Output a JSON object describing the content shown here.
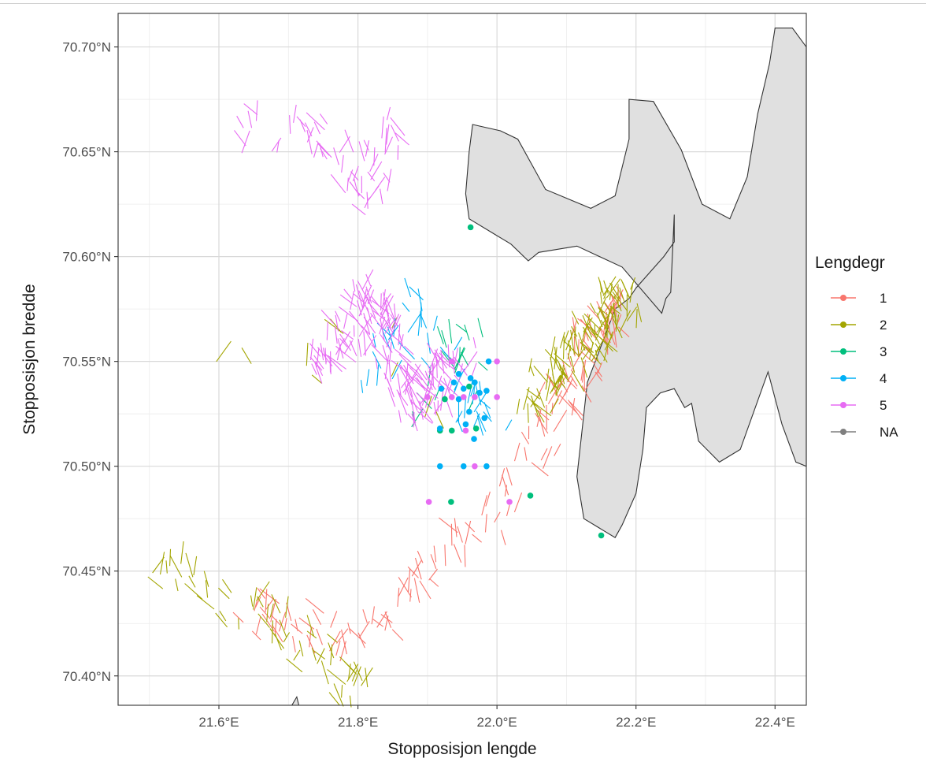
{
  "chart_data": {
    "type": "scatter",
    "xlabel": "Stopposisjon lengde",
    "ylabel": "Stopposisjon bredde",
    "xlim": [
      21.455,
      22.445
    ],
    "ylim": [
      70.386,
      70.716
    ],
    "x_ticks": [
      21.6,
      21.8,
      22.0,
      22.2,
      22.4
    ],
    "x_tick_labels": [
      "21.6°E",
      "21.8°E",
      "22.0°E",
      "22.2°E",
      "22.4°E"
    ],
    "y_ticks": [
      70.4,
      70.45,
      70.5,
      70.55,
      70.6,
      70.65,
      70.7
    ],
    "y_tick_labels": [
      "70.40°N",
      "70.45°N",
      "70.50°N",
      "70.55°N",
      "70.60°N",
      "70.65°N",
      "70.70°N"
    ],
    "grid": true,
    "legend": {
      "title": "Lengdegr",
      "placement": "right",
      "entries": [
        {
          "label": "1",
          "color": "#F8766D"
        },
        {
          "label": "2",
          "color": "#A3A500"
        },
        {
          "label": "3",
          "color": "#00BF7D"
        },
        {
          "label": "4",
          "color": "#00B0F6"
        },
        {
          "label": "5",
          "color": "#E76BF3"
        },
        {
          "label": "NA",
          "color": "#7F7F7F"
        }
      ]
    },
    "land_color": "#e0e0e0",
    "land": [
      [
        [
          21.965,
          70.663
        ],
        [
          22.005,
          70.66
        ],
        [
          22.03,
          70.656
        ],
        [
          22.07,
          70.632
        ],
        [
          22.135,
          70.623
        ],
        [
          22.17,
          70.629
        ],
        [
          22.19,
          70.656
        ],
        [
          22.19,
          70.675
        ],
        [
          22.225,
          70.674
        ],
        [
          22.265,
          70.651
        ],
        [
          22.295,
          70.625
        ],
        [
          22.335,
          70.618
        ],
        [
          22.36,
          70.638
        ],
        [
          22.375,
          70.668
        ],
        [
          22.392,
          70.692
        ],
        [
          22.4,
          70.709
        ],
        [
          22.425,
          70.709
        ],
        [
          22.445,
          70.7
        ],
        [
          22.445,
          70.5
        ],
        [
          22.43,
          70.502
        ],
        [
          22.41,
          70.52
        ],
        [
          22.39,
          70.545
        ],
        [
          22.35,
          70.508
        ],
        [
          22.32,
          70.502
        ],
        [
          22.29,
          70.512
        ],
        [
          22.28,
          70.53
        ],
        [
          22.27,
          70.528
        ],
        [
          22.255,
          70.537
        ],
        [
          22.235,
          70.535
        ],
        [
          22.215,
          70.528
        ],
        [
          22.21,
          70.508
        ],
        [
          22.2,
          70.487
        ],
        [
          22.18,
          70.472
        ],
        [
          22.17,
          70.466
        ],
        [
          22.125,
          70.475
        ],
        [
          22.115,
          70.495
        ],
        [
          22.13,
          70.54
        ],
        [
          22.17,
          70.575
        ],
        [
          22.19,
          70.58
        ],
        [
          22.2,
          70.585
        ],
        [
          22.24,
          70.6
        ],
        [
          22.255,
          70.607
        ],
        [
          22.255,
          70.62
        ],
        [
          22.25,
          70.583
        ],
        [
          22.243,
          70.58
        ],
        [
          22.237,
          70.573
        ],
        [
          22.18,
          70.595
        ],
        [
          22.115,
          70.605
        ],
        [
          22.06,
          70.602
        ],
        [
          22.045,
          70.598
        ],
        [
          22.02,
          70.606
        ],
        [
          21.995,
          70.611
        ],
        [
          21.96,
          70.618
        ],
        [
          21.955,
          70.63
        ],
        [
          21.96,
          70.65
        ],
        [
          21.965,
          70.663
        ]
      ],
      [
        [
          21.705,
          70.386
        ],
        [
          21.715,
          70.386
        ],
        [
          21.712,
          70.39
        ],
        [
          21.705,
          70.386
        ]
      ]
    ],
    "segment_series": [
      {
        "name": "1",
        "groups": [
          {
            "x": [
              21.65,
              21.8,
              22.0,
              22.12,
              22.17
            ],
            "y": [
              70.43,
              70.42,
              70.48,
              70.55,
              70.58
            ],
            "count": 160
          }
        ]
      },
      {
        "name": "2",
        "groups": [
          {
            "x": [
              21.52,
              21.6,
              21.66,
              21.75,
              21.8
            ],
            "y": [
              70.455,
              70.44,
              70.43,
              70.41,
              70.39
            ],
            "count": 60
          },
          {
            "x": [
              22.05,
              22.1,
              22.15,
              22.18
            ],
            "y": [
              70.53,
              70.55,
              70.57,
              70.58
            ],
            "count": 120
          },
          {
            "x": [
              21.56,
              21.68,
              21.79,
              21.99
            ],
            "y": [
              70.58,
              70.51,
              70.58,
              70.49
            ],
            "count": 10
          }
        ]
      },
      {
        "name": "3",
        "groups": [
          {
            "x": [
              21.88,
              21.95,
              21.98
            ],
            "y": [
              70.52,
              70.56,
              70.53
            ],
            "count": 20
          }
        ]
      },
      {
        "name": "4",
        "groups": [
          {
            "x": [
              21.82,
              21.88,
              21.96,
              22.0
            ],
            "y": [
              70.54,
              70.58,
              70.53,
              70.53
            ],
            "count": 45
          }
        ]
      },
      {
        "name": "5",
        "groups": [
          {
            "x": [
              21.62,
              21.75,
              21.8,
              21.85
            ],
            "y": [
              70.66,
              70.66,
              70.63,
              70.66
            ],
            "count": 60
          },
          {
            "x": [
              21.75,
              21.82,
              21.88,
              21.95
            ],
            "y": [
              70.55,
              70.58,
              70.53,
              70.55
            ],
            "count": 180
          }
        ]
      }
    ],
    "points": [
      {
        "series": "3",
        "x": 21.962,
        "y": 70.614
      },
      {
        "series": "3",
        "x": 22.15,
        "y": 70.467
      },
      {
        "series": "3",
        "x": 22.048,
        "y": 70.486
      },
      {
        "series": "3",
        "x": 21.934,
        "y": 70.483
      },
      {
        "series": "3",
        "x": 21.918,
        "y": 70.517
      },
      {
        "series": "3",
        "x": 21.935,
        "y": 70.517
      },
      {
        "series": "3",
        "x": 21.97,
        "y": 70.518
      },
      {
        "series": "3",
        "x": 21.96,
        "y": 70.538
      },
      {
        "series": "3",
        "x": 21.925,
        "y": 70.532
      },
      {
        "series": "4",
        "x": 21.945,
        "y": 70.544
      },
      {
        "series": "4",
        "x": 21.938,
        "y": 70.54
      },
      {
        "series": "4",
        "x": 21.952,
        "y": 70.537
      },
      {
        "series": "4",
        "x": 21.962,
        "y": 70.542
      },
      {
        "series": "4",
        "x": 21.968,
        "y": 70.54
      },
      {
        "series": "4",
        "x": 21.975,
        "y": 70.535
      },
      {
        "series": "4",
        "x": 21.985,
        "y": 70.536
      },
      {
        "series": "4",
        "x": 21.96,
        "y": 70.526
      },
      {
        "series": "4",
        "x": 21.955,
        "y": 70.52
      },
      {
        "series": "4",
        "x": 21.967,
        "y": 70.513
      },
      {
        "series": "4",
        "x": 21.982,
        "y": 70.523
      },
      {
        "series": "4",
        "x": 21.988,
        "y": 70.55
      },
      {
        "series": "4",
        "x": 21.92,
        "y": 70.537
      },
      {
        "series": "4",
        "x": 21.945,
        "y": 70.532
      },
      {
        "series": "4",
        "x": 21.918,
        "y": 70.5
      },
      {
        "series": "4",
        "x": 21.952,
        "y": 70.5
      },
      {
        "series": "4",
        "x": 21.985,
        "y": 70.5
      },
      {
        "series": "4",
        "x": 21.918,
        "y": 70.518
      },
      {
        "series": "5",
        "x": 21.902,
        "y": 70.483
      },
      {
        "series": "5",
        "x": 22.018,
        "y": 70.483
      },
      {
        "series": "5",
        "x": 21.968,
        "y": 70.5
      },
      {
        "series": "5",
        "x": 21.955,
        "y": 70.517
      },
      {
        "series": "5",
        "x": 21.952,
        "y": 70.533
      },
      {
        "series": "5",
        "x": 21.935,
        "y": 70.533
      },
      {
        "series": "5",
        "x": 21.968,
        "y": 70.533
      },
      {
        "series": "5",
        "x": 22.0,
        "y": 70.55
      },
      {
        "series": "5",
        "x": 21.935,
        "y": 70.55
      },
      {
        "series": "5",
        "x": 21.9,
        "y": 70.533
      },
      {
        "series": "5",
        "x": 22.0,
        "y": 70.533
      }
    ]
  }
}
